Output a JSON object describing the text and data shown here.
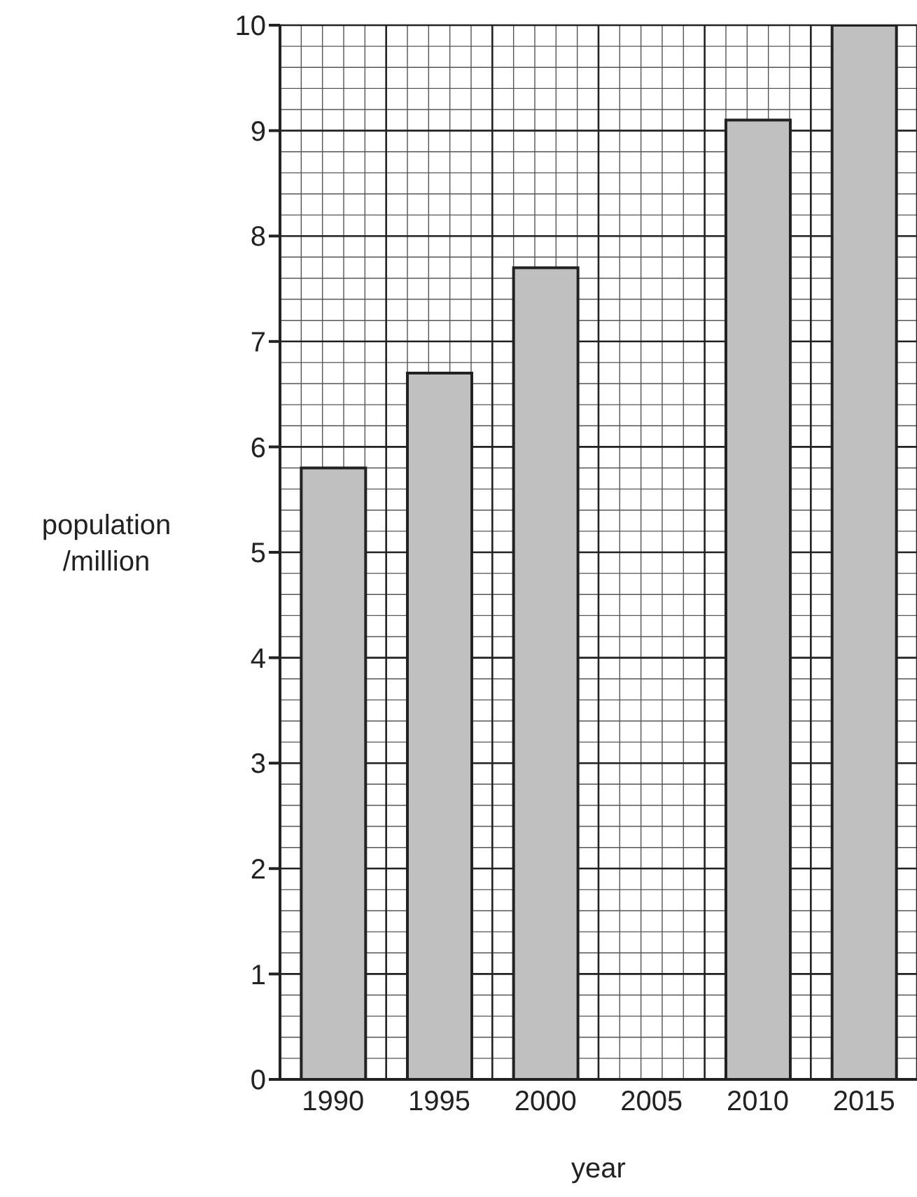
{
  "chart_data": {
    "type": "bar",
    "xlabel": "year",
    "ylabel": "population /million",
    "categories": [
      "1990",
      "1995",
      "2000",
      "2005",
      "2010",
      "2015"
    ],
    "values": [
      5.8,
      6.7,
      7.7,
      null,
      9.1,
      10
    ],
    "color": "#c0c0c0",
    "ylim": [
      0,
      10
    ],
    "yticks": [
      0,
      1,
      2,
      3,
      4,
      5,
      6,
      7,
      8,
      9,
      10
    ],
    "grid": true
  }
}
